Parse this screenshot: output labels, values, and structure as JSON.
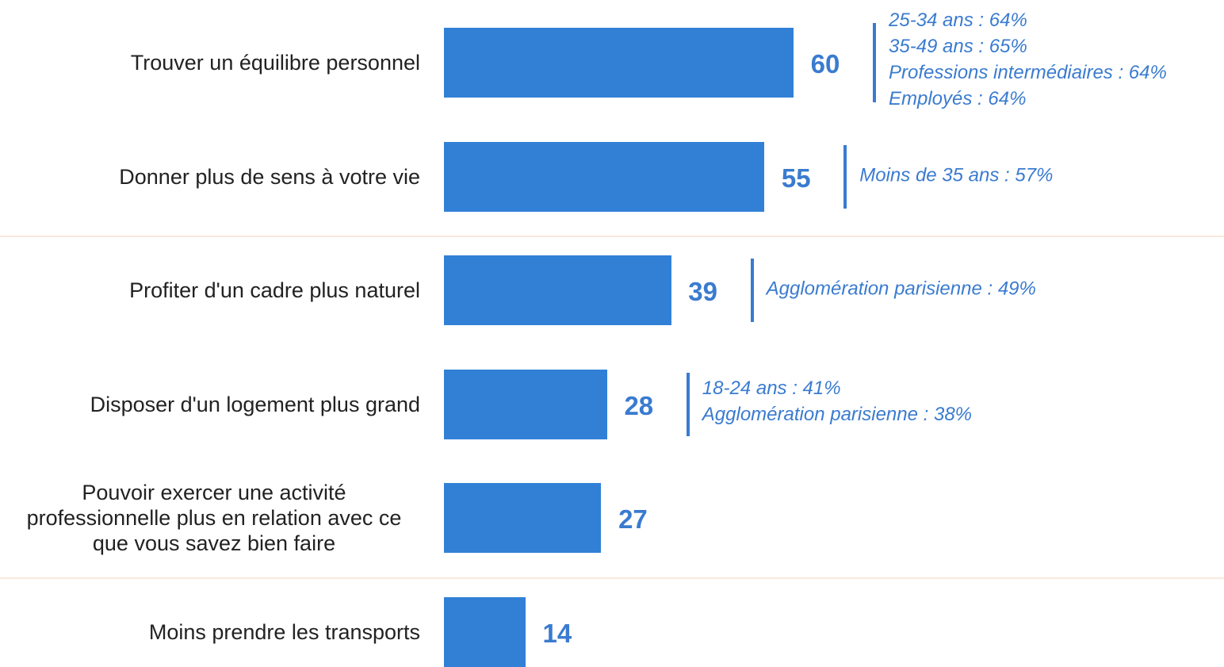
{
  "chart_data": {
    "type": "bar",
    "orientation": "horizontal",
    "color": "#3180d6",
    "categories": [
      "Trouver un équilibre personnel",
      "Donner plus de sens à votre vie",
      "Profiter d'un cadre plus naturel",
      "Disposer d'un logement plus grand",
      "Pouvoir exercer une activité professionnelle plus en relation avec ce que vous savez bien faire",
      "Moins prendre les transports"
    ],
    "values": [
      60,
      55,
      39,
      28,
      27,
      14
    ],
    "annotations": [
      [
        "25-34 ans : 64%",
        "35-49 ans : 65%",
        "Professions intermédiaires : 64%",
        "Employés : 64%"
      ],
      [
        "Moins de 35 ans : 57%"
      ],
      [
        "Agglomération parisienne : 49%"
      ],
      [
        "18-24 ans : 41%",
        "Agglomération parisienne : 38%"
      ],
      [],
      []
    ]
  }
}
